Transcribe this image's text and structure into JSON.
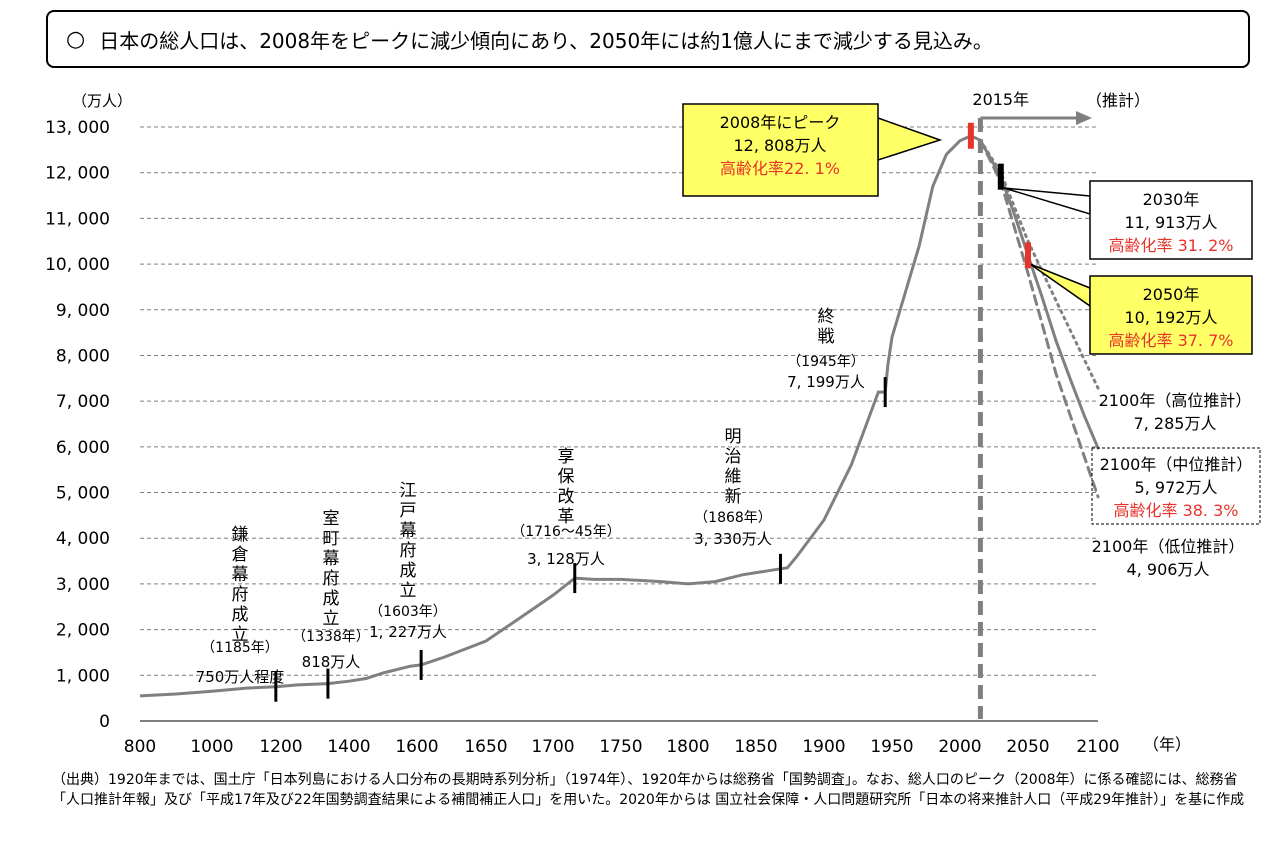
{
  "header": {
    "bullet": "○",
    "text": "日本の総人口は、2008年をピークに減少傾向にあり、2050年には約1億人にまで減少する見込み。"
  },
  "source_note": "（出典）1920年までは、国土庁「日本列島における人口分布の長期時系列分析」（1974年）、1920年からは総務省「国勢調査」。なお、総人口のピーク（2008年）に係る確認には、総務省「人口推計年報」及び「平成17年及び22年国勢調査結果による補間補正人口」を用いた。2020年からは 国立社会保障・人口問題研究所「日本の将来推計人口（平成29年推計）」を基に作成",
  "colors": {
    "line": "#808080",
    "grid": "#7f7f7f",
    "marker": "#000000",
    "highlight_marker": "#e8332a",
    "callout_fill": "#ffff66",
    "red_text": "#e8332a"
  },
  "chart_data": {
    "type": "line",
    "ylabel": "（万人）",
    "xlabel": "（年）",
    "xlim": [
      800,
      2100
    ],
    "ylim": [
      0,
      13000
    ],
    "xticks": [
      800,
      1000,
      1200,
      1400,
      1600,
      1650,
      1700,
      1750,
      1800,
      1850,
      1900,
      1950,
      2000,
      2050,
      2100
    ],
    "xtick_labels": [
      "800",
      "1000",
      "1200",
      "1400",
      "1600",
      "1650",
      "1700",
      "1750",
      "1800",
      "1850",
      "1900",
      "1950",
      "2000",
      "2050",
      "2100"
    ],
    "yticks": [
      0,
      1000,
      2000,
      3000,
      4000,
      5000,
      6000,
      7000,
      8000,
      9000,
      10000,
      11000,
      12000,
      13000
    ],
    "ytick_labels": [
      "0",
      "1, 000",
      "2, 000",
      "3, 000",
      "4, 000",
      "5, 000",
      "6, 000",
      "7, 000",
      "8, 000",
      "9, 000",
      "10, 000",
      "11, 000",
      "12, 000",
      "13, 000"
    ],
    "grid": "horizontal-dashed",
    "historical": [
      [
        800,
        550
      ],
      [
        900,
        590
      ],
      [
        1000,
        650
      ],
      [
        1100,
        720
      ],
      [
        1185,
        750
      ],
      [
        1250,
        790
      ],
      [
        1338,
        818
      ],
      [
        1400,
        870
      ],
      [
        1450,
        930
      ],
      [
        1500,
        1050
      ],
      [
        1580,
        1200
      ],
      [
        1603,
        1227
      ],
      [
        1620,
        1400
      ],
      [
        1650,
        1750
      ],
      [
        1675,
        2250
      ],
      [
        1700,
        2750
      ],
      [
        1716,
        3128
      ],
      [
        1730,
        3100
      ],
      [
        1750,
        3100
      ],
      [
        1780,
        3050
      ],
      [
        1800,
        3000
      ],
      [
        1820,
        3050
      ],
      [
        1840,
        3200
      ],
      [
        1868,
        3330
      ],
      [
        1873,
        3350
      ],
      [
        1880,
        3600
      ],
      [
        1900,
        4400
      ],
      [
        1910,
        5000
      ],
      [
        1920,
        5600
      ],
      [
        1930,
        6400
      ],
      [
        1940,
        7200
      ],
      [
        1945,
        7199
      ],
      [
        1947,
        7800
      ],
      [
        1950,
        8400
      ],
      [
        1960,
        9400
      ],
      [
        1970,
        10400
      ],
      [
        1980,
        11700
      ],
      [
        1990,
        12400
      ],
      [
        2000,
        12700
      ],
      [
        2008,
        12808
      ],
      [
        2015,
        12709
      ]
    ],
    "projections": [
      {
        "name": "中位推計",
        "style": "solid",
        "points": [
          [
            2015,
            12709
          ],
          [
            2030,
            11913
          ],
          [
            2040,
            11092
          ],
          [
            2050,
            10192
          ],
          [
            2060,
            9284
          ],
          [
            2070,
            8323
          ],
          [
            2080,
            7500
          ],
          [
            2090,
            6700
          ],
          [
            2100,
            5972
          ]
        ]
      },
      {
        "name": "高位推計",
        "style": "dotted",
        "points": [
          [
            2015,
            12709
          ],
          [
            2030,
            12000
          ],
          [
            2050,
            10500
          ],
          [
            2070,
            9200
          ],
          [
            2100,
            7285
          ]
        ]
      },
      {
        "name": "低位推計",
        "style": "dashed",
        "points": [
          [
            2015,
            12709
          ],
          [
            2030,
            11800
          ],
          [
            2050,
            9800
          ],
          [
            2070,
            7600
          ],
          [
            2100,
            4906
          ]
        ]
      }
    ],
    "boundary_year": 2015,
    "boundary_label": "2015年",
    "projection_label": "（推計）",
    "markers": [
      {
        "year": 1185,
        "value": 750,
        "lines": [
          "鎌",
          "倉",
          "幕",
          "府",
          "成",
          "立"
        ],
        "era": "（1185年）",
        "pop": "750万人程度"
      },
      {
        "year": 1338,
        "value": 818,
        "lines": [
          "室",
          "町",
          "幕",
          "府",
          "成",
          "立"
        ],
        "era": "（1338年）",
        "pop": "818万人"
      },
      {
        "year": 1603,
        "value": 1227,
        "lines": [
          "江",
          "戸",
          "幕",
          "府",
          "成",
          "立"
        ],
        "era": "（1603年）",
        "pop": "1, 227万人"
      },
      {
        "year": 1716,
        "value": 3128,
        "lines": [
          "享",
          "保",
          "改",
          "革"
        ],
        "era": "（1716～45年）",
        "pop": "3, 128万人"
      },
      {
        "year": 1868,
        "value": 3330,
        "lines": [
          "明",
          "治",
          "維",
          "新"
        ],
        "era": "（1868年）",
        "pop": "3, 330万人"
      },
      {
        "year": 1945,
        "value": 7199,
        "lines": [
          "終",
          "戦"
        ],
        "era": "（1945年）",
        "pop": "7, 199万人"
      }
    ],
    "callouts": [
      {
        "id": "peak",
        "year": 2008,
        "value": 12808,
        "l1": "2008年にピーク",
        "l2": "12, 808万人",
        "l3": "高齢化率22. 1%",
        "fill": "yellow"
      },
      {
        "id": "y2030",
        "year": 2030,
        "value": 11913,
        "l1": "2030年",
        "l2": "11, 913万人",
        "l3": "高齢化率 31. 2%",
        "fill": "white"
      },
      {
        "id": "y2050",
        "year": 2050,
        "value": 10192,
        "l1": "2050年",
        "l2": "10, 192万人",
        "l3": "高齢化率 37. 7%",
        "fill": "yellow"
      }
    ],
    "projection_labels": [
      {
        "l1": "2100年（高位推計）",
        "l2": "7, 285万人"
      },
      {
        "l1": "2100年（中位推計）",
        "l2": "5, 972万人",
        "l3": "高齢化率 38. 3%"
      },
      {
        "l1": "2100年（低位推計）",
        "l2": "4, 906万人"
      }
    ]
  }
}
